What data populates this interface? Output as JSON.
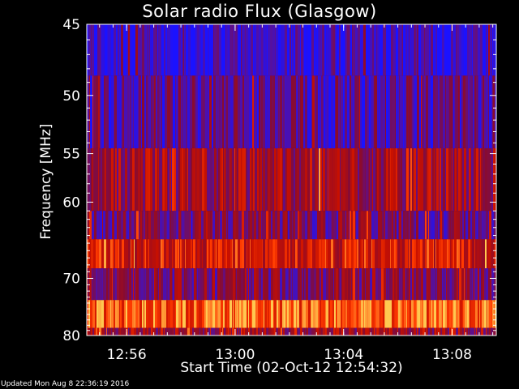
{
  "chart_data": {
    "type": "heatmap",
    "title": "Solar radio Flux (Glasgow)",
    "xlabel": "Start Time (02-Oct-12 12:54:32)",
    "ylabel": "Frequency [MHz]",
    "x_start": "12:54:32",
    "x_end": "13:09:40",
    "xlim_minutes": [
      0,
      15.1
    ],
    "x_tick_labels": [
      "12:56",
      "13:00",
      "13:04",
      "13:08"
    ],
    "x_tick_minutes": [
      1.47,
      5.47,
      9.47,
      13.47
    ],
    "ylim": [
      45,
      80
    ],
    "y_tick_values": [
      45,
      50,
      55,
      60,
      70,
      80
    ],
    "y_reciprocal_axis": true,
    "bands": [
      {
        "from": 45,
        "to": 48.5,
        "level": 0.1
      },
      {
        "from": 48.5,
        "to": 54.5,
        "level": 0.2
      },
      {
        "from": 54.5,
        "to": 61,
        "level": 0.45
      },
      {
        "from": 61,
        "to": 64.5,
        "level": 0.3
      },
      {
        "from": 64.5,
        "to": 68.5,
        "level": 0.65
      },
      {
        "from": 68.5,
        "to": 73.5,
        "level": 0.35
      },
      {
        "from": 73.5,
        "to": 78.5,
        "level": 0.85
      },
      {
        "from": 78.5,
        "to": 80,
        "level": 0.45
      }
    ],
    "colormap": [
      "#1a12ff",
      "#55109f",
      "#8a0b2d",
      "#c81000",
      "#ff3a00",
      "#ffc850"
    ]
  },
  "footer": "Updated Mon Aug  8 22:36:19 2016",
  "colors": {
    "background": "#000000",
    "text": "#ffffff"
  }
}
